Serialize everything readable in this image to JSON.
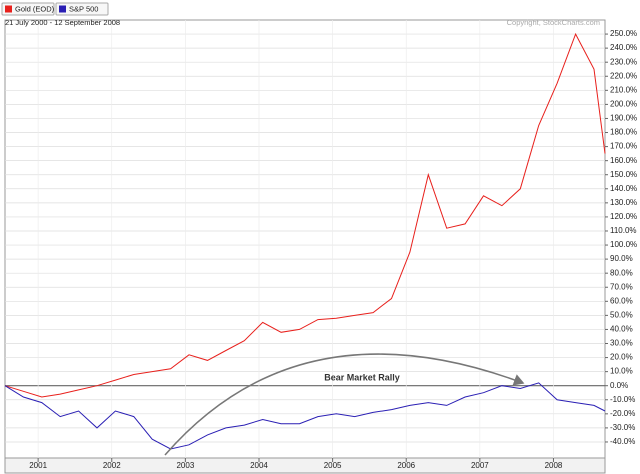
{
  "chart_data": {
    "type": "line",
    "subtitle": "21 July 2000 - 12 September 2008",
    "watermark": "Copyright, StockCharts.com",
    "annotation": "Bear Market Rally",
    "x": [
      2000.55,
      2000.8,
      2001.05,
      2001.3,
      2001.55,
      2001.8,
      2002.05,
      2002.3,
      2002.55,
      2002.8,
      2003.05,
      2003.3,
      2003.55,
      2003.8,
      2004.05,
      2004.3,
      2004.55,
      2004.8,
      2005.05,
      2005.3,
      2005.55,
      2005.8,
      2006.05,
      2006.3,
      2006.55,
      2006.8,
      2007.05,
      2007.3,
      2007.55,
      2007.8,
      2008.05,
      2008.3,
      2008.55,
      2008.7
    ],
    "series": [
      {
        "name": "Gold (EOD)",
        "color": "#e8201c",
        "values": [
          0,
          -4,
          -8,
          -6,
          -3,
          0,
          4,
          8,
          10,
          12,
          22,
          18,
          25,
          32,
          45,
          38,
          40,
          47,
          48,
          50,
          52,
          62,
          95,
          150,
          112,
          115,
          135,
          128,
          140,
          185,
          215,
          250,
          225,
          165
        ]
      },
      {
        "name": "S&P 500",
        "color": "#2a1fb4",
        "values": [
          0,
          -8,
          -12,
          -22,
          -18,
          -30,
          -18,
          -22,
          -38,
          -45,
          -42,
          -35,
          -30,
          -28,
          -24,
          -27,
          -27,
          -22,
          -20,
          -22,
          -19,
          -17,
          -14,
          -12,
          -14,
          -8,
          -5,
          0,
          -2,
          2,
          -10,
          -12,
          -14,
          -18
        ]
      }
    ],
    "xlim": [
      2000.55,
      2008.7
    ],
    "xticks": [
      2001,
      2002,
      2003,
      2004,
      2005,
      2006,
      2007,
      2008
    ],
    "ylim": [
      -51.4,
      260
    ],
    "yticks": [
      {
        "value": -40,
        "label": "-40.0%"
      },
      {
        "value": -30,
        "label": "-30.0%"
      },
      {
        "value": -20,
        "label": "-20.0%"
      },
      {
        "value": -10,
        "label": "-10.0%"
      },
      {
        "value": 0,
        "label": "0.0%"
      },
      {
        "value": 10,
        "label": "10.0%"
      },
      {
        "value": 20,
        "label": "20.0%"
      },
      {
        "value": 30,
        "label": "30.0%"
      },
      {
        "value": 40,
        "label": "40.0%"
      },
      {
        "value": 50,
        "label": "50.0%"
      },
      {
        "value": 60,
        "label": "60.0%"
      },
      {
        "value": 70,
        "label": "70.0%"
      },
      {
        "value": 80,
        "label": "80.0%"
      },
      {
        "value": 90,
        "label": "90.0%"
      },
      {
        "value": 100,
        "label": "100.0%"
      },
      {
        "value": 110,
        "label": "110.0%"
      },
      {
        "value": 120,
        "label": "120.0%"
      },
      {
        "value": 130,
        "label": "130.0%"
      },
      {
        "value": 140,
        "label": "140.0%"
      },
      {
        "value": 150,
        "label": "150.0%"
      },
      {
        "value": 160,
        "label": "160.0%"
      },
      {
        "value": 170,
        "label": "170.0%"
      },
      {
        "value": 180,
        "label": "180.0%"
      },
      {
        "value": 190,
        "label": "190.0%"
      },
      {
        "value": 200,
        "label": "200.0%"
      },
      {
        "value": 210,
        "label": "210.0%"
      },
      {
        "value": 220,
        "label": "220.0%"
      },
      {
        "value": 230,
        "label": "230.0%"
      },
      {
        "value": 240,
        "label": "240.0%"
      },
      {
        "value": 250,
        "label": "250.0%"
      }
    ],
    "grid": true
  }
}
